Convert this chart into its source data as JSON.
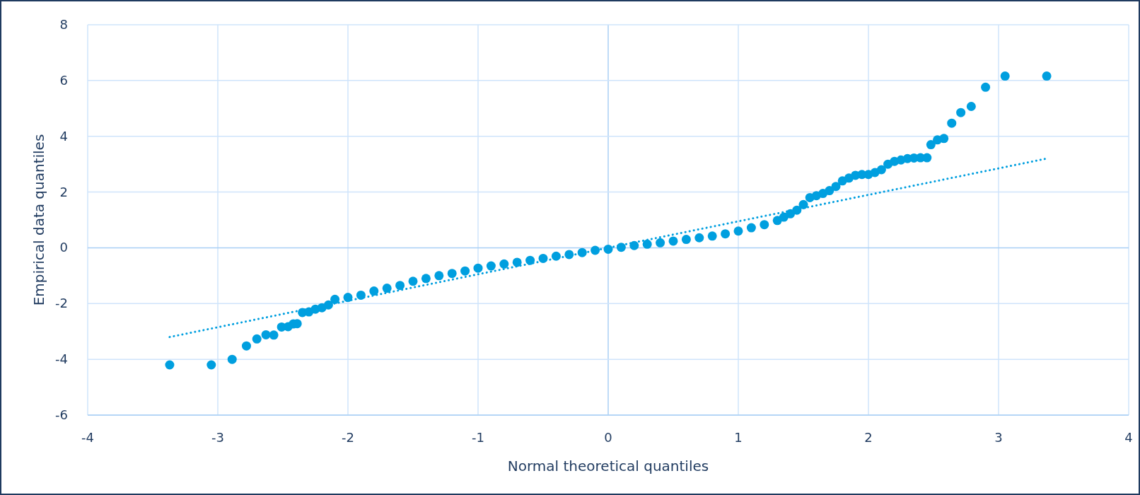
{
  "chart_data": {
    "type": "scatter",
    "xlabel": "Normal theoretical quantiles",
    "ylabel": "Empirical data quantiles",
    "xlim": [
      -4,
      4
    ],
    "xticks": [
      -4,
      -3,
      -2,
      -1,
      0,
      1,
      2,
      3,
      4
    ],
    "ylim": [
      -6,
      8
    ],
    "yticks": [
      -6,
      -4,
      -2,
      0,
      2,
      4,
      6,
      8
    ],
    "grid": true,
    "series": [
      {
        "marker": "circle",
        "color": "#009fdf",
        "x": [
          -3.37,
          -3.05,
          -2.89,
          -2.78,
          -2.7,
          -2.63,
          -2.57,
          -2.51,
          -2.46,
          -2.42,
          -2.39,
          -2.35,
          -2.3,
          -2.25,
          -2.2,
          -2.15,
          -2.1,
          -2.0,
          -1.9,
          -1.8,
          -1.7,
          -1.6,
          -1.5,
          -1.4,
          -1.3,
          -1.2,
          -1.1,
          -1.0,
          -0.9,
          -0.8,
          -0.7,
          -0.6,
          -0.5,
          -0.4,
          -0.3,
          -0.2,
          -0.1,
          0,
          0.1,
          0.2,
          0.3,
          0.4,
          0.5,
          0.6,
          0.7,
          0.8,
          0.9,
          1.0,
          1.1,
          1.2,
          1.3,
          1.35,
          1.4,
          1.45,
          1.5,
          1.55,
          1.6,
          1.65,
          1.7,
          1.75,
          1.8,
          1.85,
          1.9,
          1.95,
          2.0,
          2.05,
          2.1,
          2.15,
          2.2,
          2.25,
          2.3,
          2.35,
          2.4,
          2.45,
          2.48,
          2.53,
          2.58,
          2.64,
          2.71,
          2.79,
          2.9,
          3.05,
          3.37
        ],
        "values": [
          -4.2,
          -4.2,
          -4.0,
          -3.52,
          -3.27,
          -3.12,
          -3.13,
          -2.84,
          -2.83,
          -2.73,
          -2.72,
          -2.32,
          -2.3,
          -2.2,
          -2.15,
          -2.05,
          -1.85,
          -1.78,
          -1.7,
          -1.55,
          -1.45,
          -1.35,
          -1.2,
          -1.1,
          -1.0,
          -0.92,
          -0.83,
          -0.73,
          -0.65,
          -0.58,
          -0.52,
          -0.45,
          -0.38,
          -0.3,
          -0.24,
          -0.17,
          -0.09,
          -0.05,
          0.02,
          0.08,
          0.13,
          0.18,
          0.24,
          0.3,
          0.36,
          0.42,
          0.5,
          0.6,
          0.72,
          0.83,
          0.98,
          1.1,
          1.22,
          1.35,
          1.55,
          1.8,
          1.87,
          1.95,
          2.05,
          2.2,
          2.4,
          2.5,
          2.6,
          2.63,
          2.63,
          2.7,
          2.8,
          3.0,
          3.1,
          3.15,
          3.2,
          3.22,
          3.23,
          3.23,
          3.7,
          3.87,
          3.92,
          4.47,
          4.85,
          5.07,
          5.76,
          6.16,
          6.16
        ]
      },
      {
        "type": "line",
        "color": "#009fdf",
        "line_style": "dotted",
        "x": [
          -3.37,
          3.37
        ],
        "values": [
          -3.2,
          3.2
        ]
      }
    ]
  }
}
